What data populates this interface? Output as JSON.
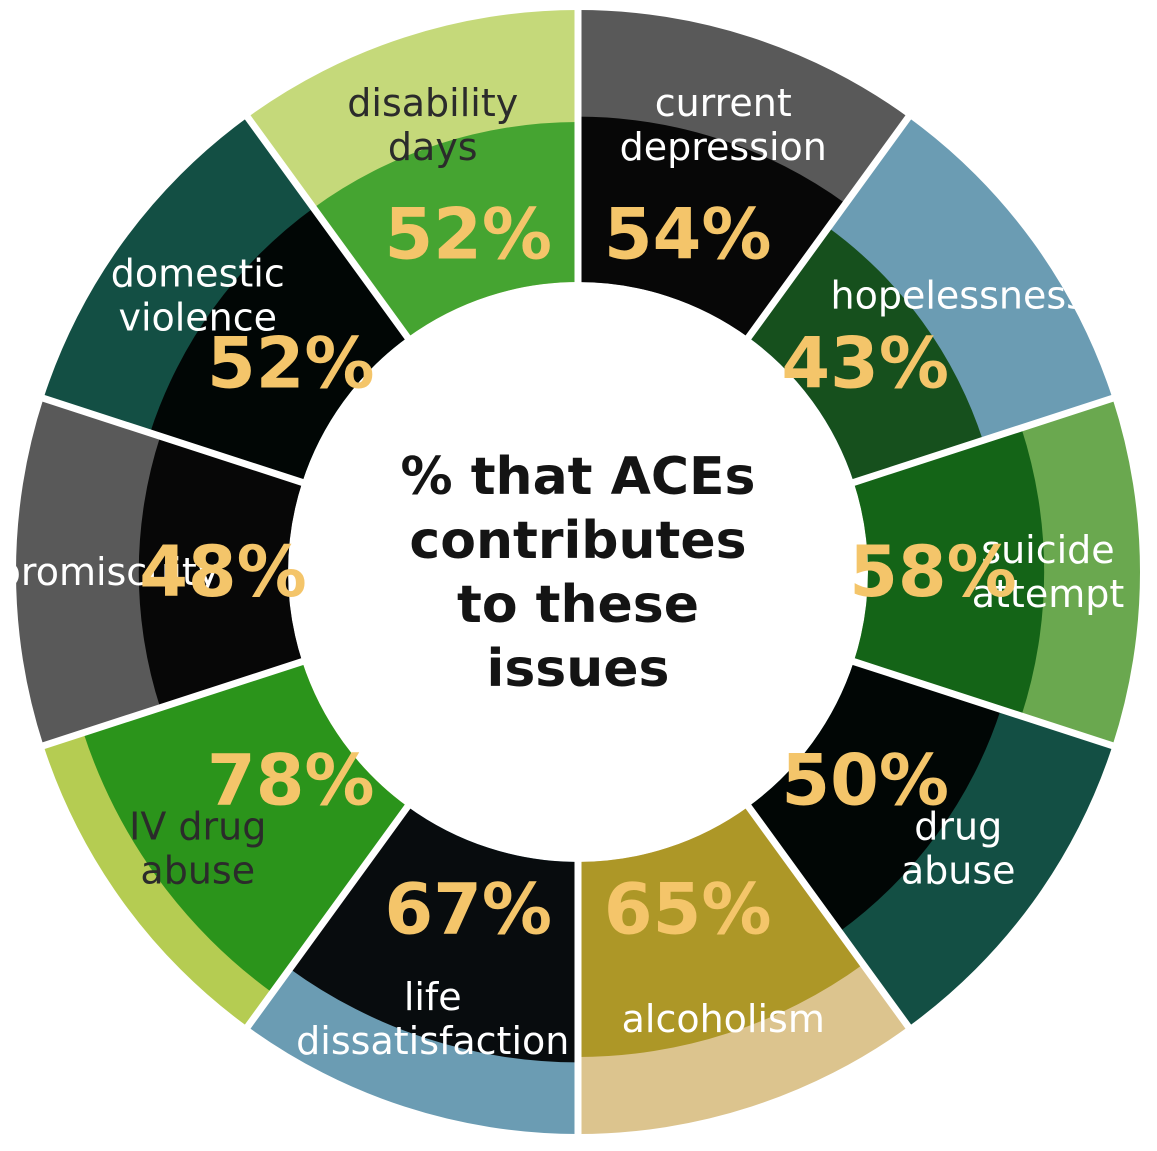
{
  "chart_data": {
    "type": "pie",
    "title_lines": [
      "% that ACEs",
      "contributes",
      "to these",
      "issues"
    ],
    "segments": [
      {
        "label_lines": [
          "current",
          "depression"
        ],
        "value": 54,
        "value_label": "54%",
        "color": "#595959",
        "inner_color": "#000000"
      },
      {
        "label_lines": [
          "hopelessness"
        ],
        "value": 43,
        "value_label": "43%",
        "color": "#6b9cb3",
        "inner_color": "#0f4a10"
      },
      {
        "label_lines": [
          "suicide",
          "attempt"
        ],
        "value": 58,
        "value_label": "58%",
        "color": "#6aa84f",
        "inner_color": "#0d5e12"
      },
      {
        "label_lines": [
          "drug",
          "abuse"
        ],
        "value": 50,
        "value_label": "50%",
        "color": "#134f44",
        "inner_color": "#000000"
      },
      {
        "label_lines": [
          "alcoholism"
        ],
        "value": 65,
        "value_label": "65%",
        "color": "#dcc48e",
        "inner_color": "#a8921e"
      },
      {
        "label_lines": [
          "life",
          "dissatisfaction"
        ],
        "value": 67,
        "value_label": "67%",
        "color": "#6b9cb3",
        "inner_color": "#000000"
      },
      {
        "label_lines": [
          "IV drug",
          "abuse"
        ],
        "value": 78,
        "value_label": "78%",
        "color": "#b5cc52",
        "inner_color": "#1f8f17"
      },
      {
        "label_lines": [
          "promiscuity"
        ],
        "value": 48,
        "value_label": "48%",
        "color": "#595959",
        "inner_color": "#000000"
      },
      {
        "label_lines": [
          "domestic",
          "violence"
        ],
        "value": 52,
        "value_label": "52%",
        "color": "#134f44",
        "inner_color": "#000000"
      },
      {
        "label_lines": [
          "disability",
          "days"
        ],
        "value": 52,
        "value_label": "52%",
        "color": "#c5d97a",
        "inner_color": "#3aa02a"
      }
    ],
    "colors": {
      "value_text": "#f4c56a",
      "center_fill": "#ffffff",
      "divider": "#ffffff"
    }
  }
}
